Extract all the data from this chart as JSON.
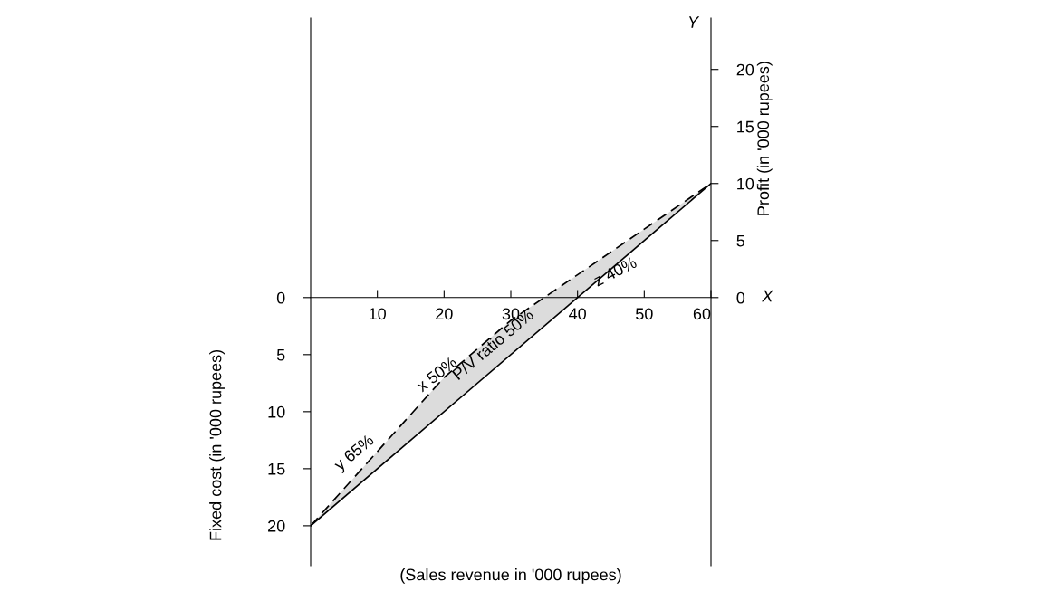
{
  "chart_data": {
    "type": "line",
    "xlabel": "(Sales revenue in '000 rupees)",
    "ylabel": "Fixed cost (in '000 rupees)",
    "y2label": "Profit (in '000 rupees)",
    "series": [
      {
        "color": "#000000",
        "line_style": "dashed",
        "x": [
          0,
          20,
          30,
          60
        ],
        "values": [
          -20,
          -7,
          -2,
          10
        ],
        "lower": [
          -20,
          -10,
          -5,
          10
        ],
        "upper": [
          -20,
          -7,
          -2,
          10
        ]
      },
      {
        "color": "#000000",
        "line_style": "solid",
        "x": [
          0,
          60
        ],
        "values": [
          -20,
          10
        ]
      }
    ],
    "xlim": [
      0,
      60
    ],
    "xticks": [
      10,
      20,
      30,
      40,
      50,
      60
    ],
    "ylim": [
      -23.5,
      24.5
    ],
    "yticks": [
      {
        "value": 0,
        "label": "0"
      },
      {
        "value": -5,
        "label": "5"
      },
      {
        "value": -10,
        "label": "10"
      },
      {
        "value": -15,
        "label": "15"
      },
      {
        "value": -20,
        "label": "20"
      }
    ],
    "y2lim": [
      -23.5,
      24.5
    ],
    "y2ticks": [
      0,
      5,
      10,
      15,
      20
    ],
    "annotations": [
      "y 65%",
      "x 50%",
      "P/V ratio 50%",
      "z 40%",
      "Y",
      "X"
    ],
    "grid": false,
    "legend": false
  }
}
